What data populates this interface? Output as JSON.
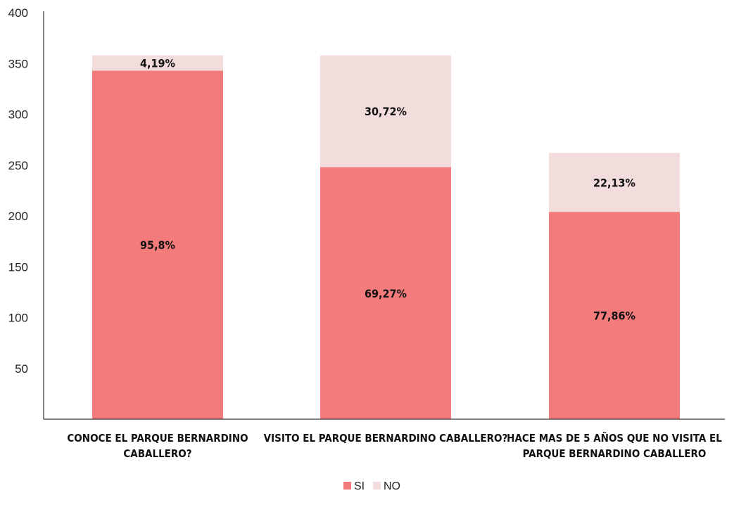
{
  "chart_data": {
    "type": "bar",
    "stacked": true,
    "categories": [
      "Conoce el Parque Bernardino Caballero?",
      "Visito el Parque Bernardino Caballero?",
      "Hace mas de 5 años que no visita el Parque Bernardino Caballero"
    ],
    "category_lines": [
      [
        "CONOCE EL PARQUE BERNARDINO",
        "CABALLERO?"
      ],
      [
        "VISITO EL PARQUE BERNARDINO CABALLERO?"
      ],
      [
        "HACE MAS DE 5 AÑOS QUE NO VISITA EL",
        "PARQUE BERNARDINO CABALLERO"
      ]
    ],
    "series": [
      {
        "name": "SI",
        "color": "#f47b7b",
        "values": [
          343,
          248,
          204
        ],
        "labels": [
          "95,8%",
          "69,27%",
          "77,86%"
        ]
      },
      {
        "name": "NO",
        "color": "#f2dcdc",
        "values": [
          15,
          110,
          58
        ],
        "labels": [
          "4,19%",
          "30,72%",
          "22,13%"
        ]
      }
    ],
    "yticks": [
      50,
      100,
      150,
      200,
      250,
      300,
      350,
      400
    ],
    "ylim": [
      0,
      400
    ],
    "grid": false,
    "legend_position": "bottom-center",
    "title": "",
    "xlabel": "",
    "ylabel": ""
  }
}
